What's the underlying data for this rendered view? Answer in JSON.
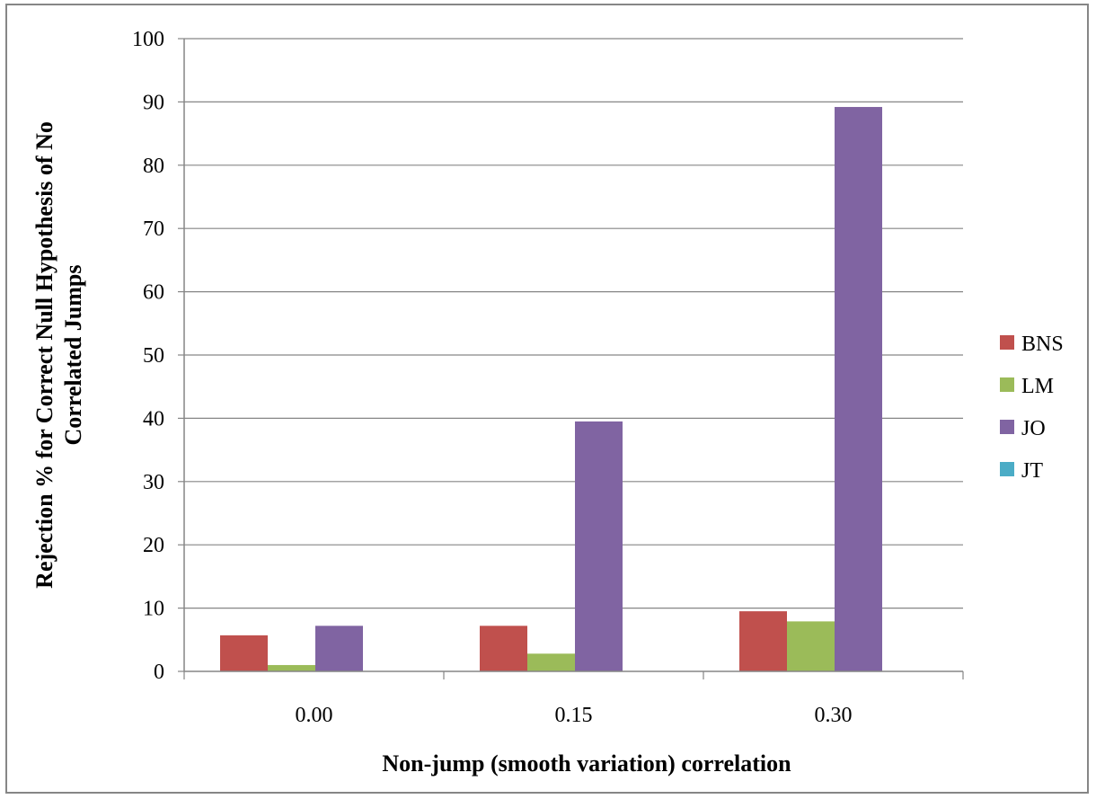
{
  "chart_data": {
    "type": "bar",
    "categories": [
      "0.00",
      "0.15",
      "0.30"
    ],
    "series": [
      {
        "name": "BNS",
        "color": "#C0504D",
        "values": [
          5.7,
          7.2,
          9.5
        ]
      },
      {
        "name": "LM",
        "color": "#9BBB59",
        "values": [
          1.0,
          2.8,
          7.9
        ]
      },
      {
        "name": "JO",
        "color": "#8064A2",
        "values": [
          7.2,
          39.5,
          89.2
        ]
      },
      {
        "name": "JT",
        "color": "#4BACC6",
        "values": [
          0,
          0,
          0
        ]
      }
    ],
    "xlabel": "Non-jump (smooth variation) correlation",
    "ylabel_lines": [
      "Rejection %   for Correct Null Hypothesis of No",
      "Correlated Jumps"
    ],
    "ylim": [
      0,
      100
    ],
    "yticks": [
      "0",
      "10",
      "20",
      "30",
      "40",
      "50",
      "60",
      "70",
      "80",
      "90",
      "100"
    ],
    "grid": true,
    "legend": "right"
  }
}
